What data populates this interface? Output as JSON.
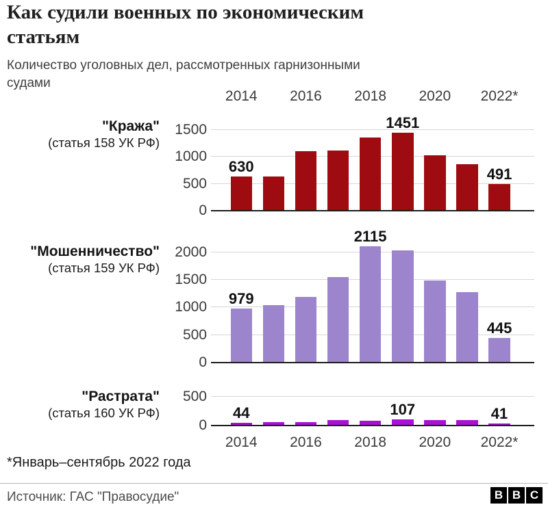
{
  "title_lines": [
    "Как судили военных по экономическим",
    "статьям"
  ],
  "subtitle_lines": [
    "Количество уголовных дел, рассмотренных гарнизонными",
    "судами"
  ],
  "footnote": "*Январь–сентябрь 2022 года",
  "source": "Источник: ГАС \"Правосудие\"",
  "bbc_logo": [
    "B",
    "B",
    "C"
  ],
  "colors": {
    "theft_bars": "#9e0b11",
    "fraud_bars": "#9c85cc",
    "embezzlement_bars": "#a811d4",
    "gridline": "#d6d6d6",
    "baseline": "#1a1a1a"
  },
  "chart_data": {
    "type": "bar",
    "title": "Как судили военных по экономическим статьям",
    "subtitle": "Количество уголовных дел, рассмотренных гарнизонными судами",
    "categories": [
      "2014",
      "2015",
      "2016",
      "2017",
      "2018",
      "2019",
      "2020",
      "2021",
      "2022*"
    ],
    "x_axis_labels_shown": [
      "2014",
      "2016",
      "2018",
      "2020",
      "2022*"
    ],
    "grid": "horizontal",
    "legend": "row labels at left of each panel",
    "note": "*Январь–сентябрь 2022 года",
    "source": "Источник: ГАС \"Правосудие\"",
    "series": [
      {
        "name": "Кража (статья 158 УК РФ)",
        "label": "\"Кража\"",
        "sublabel": "(статья 158 УК РФ)",
        "color": "#9e0b11",
        "values": [
          630,
          640,
          1110,
          1120,
          1365,
          1451,
          1035,
          870,
          491
        ],
        "value_labels": {
          "0": "630",
          "5": "1451",
          "8": "491"
        },
        "y_ticks": [
          0,
          500,
          1000,
          1500
        ],
        "ylim": [
          0,
          1650
        ]
      },
      {
        "name": "Мошенничество (статья 159 УК РФ)",
        "label": "\"Мошенничество\"",
        "sublabel": "(статья 159 УК РФ)",
        "color": "#9c85cc",
        "values": [
          979,
          1040,
          1190,
          1545,
          2115,
          2040,
          1485,
          1280,
          445
        ],
        "value_labels": {
          "0": "979",
          "4": "2115",
          "8": "445"
        },
        "y_ticks": [
          0,
          500,
          1000,
          1500,
          2000
        ],
        "ylim": [
          0,
          2150
        ]
      },
      {
        "name": "Растрата (статья 160 УК РФ)",
        "label": "\"Растрата\"",
        "sublabel": "(статья 160 УК РФ)",
        "color": "#a811d4",
        "values": [
          44,
          65,
          55,
          90,
          85,
          107,
          90,
          95,
          41
        ],
        "value_labels": {
          "0": "44",
          "5": "107",
          "8": "41"
        },
        "y_ticks": [
          0,
          500
        ],
        "ylim": [
          0,
          620
        ]
      }
    ]
  }
}
